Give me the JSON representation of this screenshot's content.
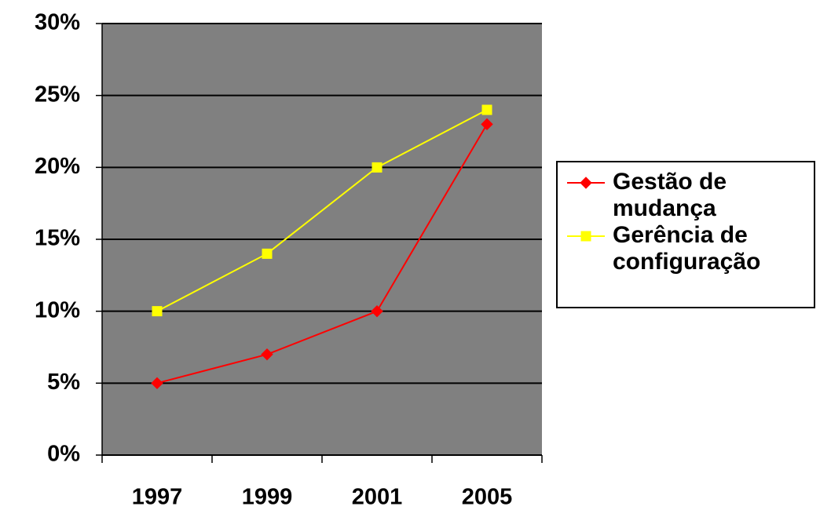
{
  "chart_data": {
    "type": "line",
    "categories": [
      "1997",
      "1999",
      "2001",
      "2005"
    ],
    "series": [
      {
        "name": "Gestão de mudança",
        "color": "#ff0000",
        "marker": "diamond",
        "values": [
          5,
          7,
          10,
          23
        ]
      },
      {
        "name": "Gerência de configuração",
        "color": "#ffff00",
        "marker": "square",
        "values": [
          10,
          14,
          20,
          24
        ]
      }
    ],
    "ylim": [
      0,
      30
    ],
    "yticks": [
      {
        "value": 0,
        "label": "0%"
      },
      {
        "value": 5,
        "label": "5%"
      },
      {
        "value": 10,
        "label": "10%"
      },
      {
        "value": 15,
        "label": "15%"
      },
      {
        "value": 20,
        "label": "20%"
      },
      {
        "value": 25,
        "label": "25%"
      },
      {
        "value": 30,
        "label": "30%"
      }
    ],
    "grid": true,
    "legend": "right",
    "plot_background": "#808080"
  }
}
